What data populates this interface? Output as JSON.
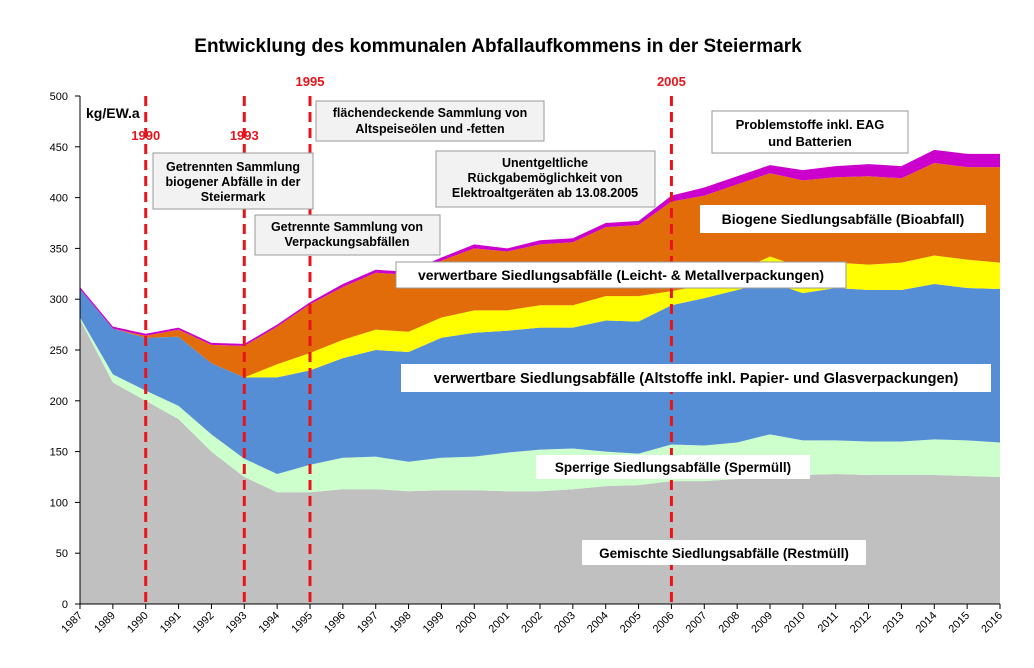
{
  "chart_data": {
    "type": "area",
    "stacked": true,
    "title": "Entwicklung des kommunalen Abfallaufkommens in der Steiermark",
    "ylabel": "kg/EW.a",
    "ylim": [
      0,
      500
    ],
    "yticks": [
      0,
      50,
      100,
      150,
      200,
      250,
      300,
      350,
      400,
      450,
      500
    ],
    "grid": false,
    "x": [
      "1987",
      "1989",
      "1990",
      "1991",
      "1992",
      "1993",
      "1994",
      "1995",
      "1996",
      "1997",
      "1998",
      "1999",
      "2000",
      "2001",
      "2002",
      "2003",
      "2004",
      "2005",
      "2006",
      "2007",
      "2008",
      "2009",
      "2010",
      "2011",
      "2012",
      "2013",
      "2014",
      "2015",
      "2016"
    ],
    "series": [
      {
        "name": "Gemischte Siedlungsabfälle (Restmüll)",
        "color": "#c0c0c0",
        "values": [
          280,
          218,
          200,
          182,
          150,
          125,
          110,
          110,
          113,
          113,
          111,
          112,
          112,
          111,
          111,
          113,
          116,
          117,
          121,
          121,
          123,
          125,
          127,
          128,
          127,
          127,
          127,
          126,
          125
        ]
      },
      {
        "name": "Sperrige Siedlungsabfälle (Spermüll)",
        "color": "#ccffcc",
        "values": [
          2,
          8,
          10,
          13,
          17,
          18,
          18,
          27,
          31,
          32,
          29,
          32,
          33,
          38,
          41,
          40,
          34,
          31,
          36,
          35,
          36,
          42,
          34,
          33,
          33,
          33,
          35,
          35,
          34
        ]
      },
      {
        "name": "verwertbare Siedlungsabfälle (Altstoffe inkl. Papier- und Glasverpackungen)",
        "color": "#558ed5",
        "values": [
          28,
          45,
          52,
          68,
          70,
          80,
          95,
          93,
          98,
          105,
          108,
          118,
          122,
          120,
          120,
          119,
          129,
          130,
          137,
          145,
          150,
          150,
          145,
          150,
          149,
          149,
          153,
          150,
          151
        ]
      },
      {
        "name": "verwertbare Siedlungsabfälle (Leicht- & Metallverpackungen)",
        "color": "#ffff00",
        "values": [
          0,
          0,
          0,
          0,
          0,
          0,
          13,
          17,
          18,
          20,
          20,
          20,
          22,
          20,
          22,
          22,
          24,
          25,
          14,
          13,
          18,
          25,
          25,
          25,
          25,
          27,
          28,
          28,
          26
        ]
      },
      {
        "name": "Biogene Siedlungsabfälle (Bioabfall)",
        "color": "#e36c0a",
        "values": [
          0,
          0,
          2,
          7,
          18,
          31,
          37,
          48,
          52,
          56,
          56,
          56,
          61,
          58,
          60,
          62,
          68,
          70,
          88,
          88,
          86,
          82,
          86,
          84,
          87,
          83,
          91,
          91,
          94
        ]
      },
      {
        "name": "Problemstoffe inkl. EAG und Batterien",
        "color": "#cc00cc",
        "values": [
          2,
          2,
          2,
          2,
          2,
          2,
          2,
          2,
          3,
          3,
          3,
          3,
          4,
          3,
          4,
          4,
          4,
          4,
          6,
          8,
          8,
          8,
          10,
          11,
          12,
          12,
          13,
          13,
          13
        ]
      }
    ],
    "series_labels": {
      "rest": "Gemischte Siedlungsabfälle (Restmüll)",
      "sperr": "Sperrige Siedlungsabfälle (Spermüll)",
      "alt": "verwertbare Siedlungsabfälle (Altstoffe inkl. Papier- und Glasverpackungen)",
      "lvp": "verwertbare Siedlungsabfälle (Leicht- & Metallverpackungen)",
      "bio": "Biogene Siedlungsabfälle (Bioabfall)",
      "problem": "Problemstoffe inkl. EAG und Batterien"
    },
    "markers": [
      {
        "label": "1990",
        "x": "1990"
      },
      {
        "label": "1993",
        "x": "1993"
      },
      {
        "label": "1995",
        "x": "1995"
      },
      {
        "label": "2005",
        "x": "2006"
      }
    ],
    "annotations": {
      "bio_1990": "Getrennten Sammlung biogener Abfälle in der Steiermark",
      "vp_1993": "Getrennte Sammlung von Verpackungsabfällen",
      "oil_1995": "flächendeckende Sammlung von Altspeiseölen und -fetten",
      "eag_2005": "Unentgeltliche Rückgabemöglichkeit von Elektroaltgeräten ab 13.08.2005"
    }
  }
}
